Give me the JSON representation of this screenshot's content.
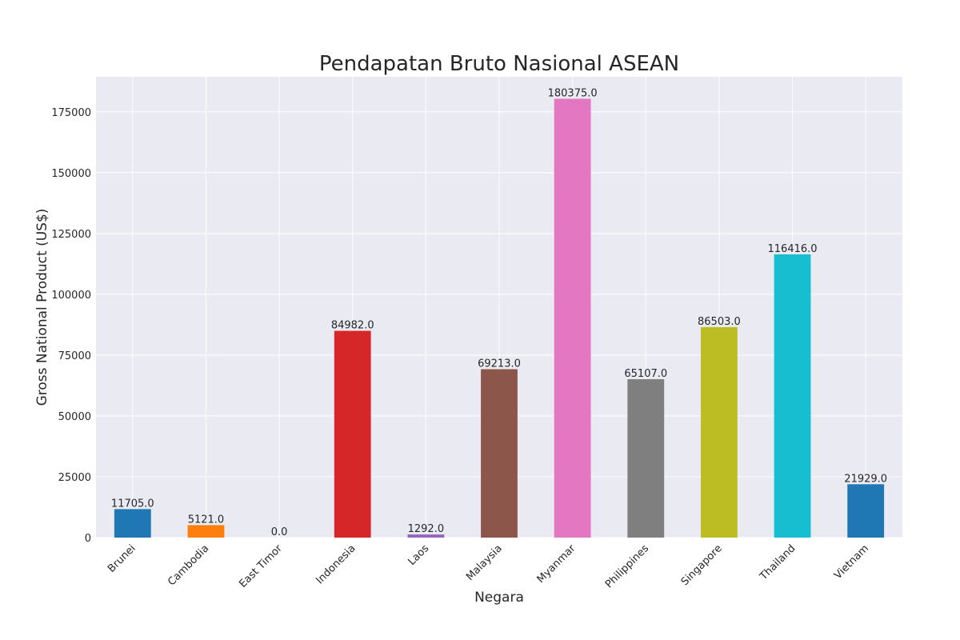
{
  "chart_data": {
    "type": "bar",
    "title": "Pendapatan Bruto Nasional ASEAN",
    "xlabel": "Negara",
    "ylabel": "Gross National Product (US$)",
    "categories": [
      "Brunei",
      "Cambodia",
      "East Timor",
      "Indonesia",
      "Laos",
      "Malaysia",
      "Myanmar",
      "Philippines",
      "Singapore",
      "Thailand",
      "Vietnam"
    ],
    "values": [
      11705.0,
      5121.0,
      0.0,
      84982.0,
      1292.0,
      69213.0,
      180375.0,
      65107.0,
      86503.0,
      116416.0,
      21929.0
    ],
    "value_labels": [
      "11705.0",
      "5121.0",
      "0.0",
      "84982.0",
      "1292.0",
      "69213.0",
      "180375.0",
      "65107.0",
      "86503.0",
      "116416.0",
      "21929.0"
    ],
    "colors": [
      "#1f77b4",
      "#ff7f0e",
      "#2ca02c",
      "#d62728",
      "#9467bd",
      "#8c564b",
      "#e377c2",
      "#7f7f7f",
      "#bcbd22",
      "#17becf",
      "#1f77b4"
    ],
    "yticks": [
      0,
      25000,
      50000,
      75000,
      100000,
      125000,
      150000,
      175000
    ],
    "ytick_labels": [
      "0",
      "25000",
      "50000",
      "75000",
      "100000",
      "125000",
      "150000",
      "175000"
    ],
    "ylim": [
      0,
      189394
    ],
    "grid": true,
    "plot_background": "#eaeaf2",
    "grid_color": "#ffffff"
  }
}
